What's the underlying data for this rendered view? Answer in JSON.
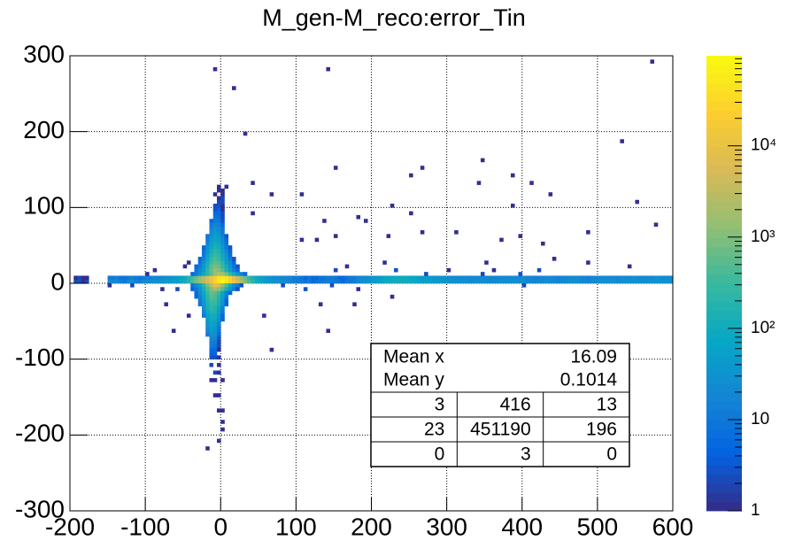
{
  "chart_data": {
    "type": "heatmap2d",
    "title": "M_gen-M_reco:error_Tin",
    "xlim": [
      -200,
      600
    ],
    "xticks": [
      -200,
      -100,
      0,
      100,
      200,
      300,
      400,
      500,
      600
    ],
    "ylim": [
      -300,
      300
    ],
    "yticks": [
      -300,
      -200,
      -100,
      0,
      100,
      200,
      300
    ],
    "zlim": [
      1,
      97000
    ],
    "zlog": true,
    "zticks": [
      1,
      10,
      {
        "value": 100,
        "label": "10²"
      },
      {
        "value": 1000,
        "label": "10³"
      },
      {
        "value": 10000,
        "label": "10⁴"
      }
    ],
    "grid": true,
    "xbin": 5,
    "ybin": 5,
    "colormap": [
      "#352a87",
      "#0363e1",
      "#1485d4",
      "#06a7c6",
      "#38b99e",
      "#92bf73",
      "#d9ba56",
      "#fcce2e",
      "#f9fb0e"
    ],
    "rows": [
      {
        "y": 0,
        "x0": -195,
        "counts": [
          2,
          3,
          1,
          2,
          null,
          null,
          null,
          null,
          null,
          20,
          18,
          22,
          15,
          12,
          20,
          25,
          18,
          15,
          20,
          22,
          25,
          30,
          28,
          35,
          40,
          45,
          50,
          60,
          80,
          120,
          200,
          400,
          800,
          1500,
          3000,
          6000,
          12000,
          25000,
          50000,
          80000,
          60000,
          30000,
          12000,
          5000,
          2000,
          900,
          400,
          200,
          120,
          80,
          60,
          45,
          35,
          30,
          25,
          22,
          20,
          18,
          15,
          12,
          10,
          8,
          10,
          6,
          8,
          12,
          10,
          15,
          12,
          10,
          8,
          6,
          10,
          12,
          15,
          20,
          25,
          30,
          35,
          40,
          50,
          60,
          80,
          90,
          100,
          110,
          120,
          110,
          100,
          90,
          80,
          70,
          60,
          55,
          50,
          45,
          40,
          40,
          38,
          35,
          30,
          30,
          28,
          25,
          25,
          22,
          25,
          28,
          30,
          25,
          22,
          20,
          22,
          25,
          28,
          30,
          30,
          28,
          25,
          25,
          22,
          20,
          18,
          20,
          22,
          25,
          22,
          20,
          18,
          20,
          22,
          25,
          28,
          25,
          22,
          20,
          18,
          20,
          22,
          25,
          28,
          30,
          28,
          25,
          22,
          25,
          28,
          30,
          32,
          30,
          28,
          25,
          28,
          30,
          32,
          35,
          30,
          28,
          30
        ]
      },
      {
        "y": 5,
        "x0": -195,
        "counts": [
          1,
          2,
          1,
          1,
          null,
          null,
          null,
          null,
          null,
          12,
          10,
          14,
          9,
          8,
          12,
          15,
          11,
          9,
          12,
          14,
          15,
          18,
          17,
          22,
          25,
          28,
          32,
          40,
          55,
          90,
          160,
          350,
          700,
          1400,
          2800,
          5500,
          10000,
          20000,
          40000,
          60000,
          45000,
          22000,
          9000,
          3500,
          1500,
          700,
          300,
          150,
          90,
          60,
          45,
          35,
          28,
          24,
          20,
          18,
          16,
          14,
          12,
          10,
          8,
          6,
          8,
          5,
          6,
          9,
          8,
          12,
          10,
          8,
          6,
          5,
          8,
          10,
          12,
          16,
          20,
          24,
          28,
          32,
          40,
          48,
          64,
          72,
          80,
          88,
          96,
          88,
          80,
          72,
          64,
          56,
          48,
          44,
          40,
          36,
          32,
          32,
          30,
          28,
          24,
          24,
          22,
          20,
          20,
          18,
          20,
          22,
          24,
          20,
          18,
          16,
          18,
          20,
          22,
          24,
          24,
          22,
          20,
          20,
          18,
          16,
          14,
          16,
          18,
          20,
          18,
          16,
          14,
          16,
          18,
          20,
          22,
          20,
          18,
          16,
          14,
          16,
          18,
          20,
          22,
          24,
          22,
          20,
          18,
          20,
          22,
          24,
          26,
          24,
          22,
          20,
          22,
          24,
          26,
          28,
          24,
          22,
          24
        ]
      },
      {
        "y": 10,
        "x0": -40,
        "counts": [
          5,
          10,
          30,
          80,
          200,
          600,
          1500,
          2500,
          2000,
          800,
          300,
          100,
          40,
          15,
          5
        ]
      },
      {
        "y": 15,
        "x0": -35,
        "counts": [
          8,
          20,
          60,
          200,
          700,
          1500,
          1200,
          500,
          150,
          50,
          15,
          5
        ]
      },
      {
        "y": 20,
        "x0": -35,
        "counts": [
          5,
          12,
          40,
          150,
          500,
          900,
          700,
          300,
          100,
          30,
          8,
          3
        ]
      },
      {
        "y": 25,
        "x0": -30,
        "counts": [
          8,
          25,
          100,
          350,
          600,
          450,
          200,
          60,
          20,
          5
        ]
      },
      {
        "y": 30,
        "x0": -30,
        "counts": [
          5,
          15,
          70,
          250,
          400,
          300,
          120,
          40,
          10,
          3
        ]
      },
      {
        "y": 35,
        "x0": -25,
        "counts": [
          10,
          50,
          180,
          280,
          200,
          80,
          25,
          6
        ]
      },
      {
        "y": 40,
        "x0": -25,
        "counts": [
          8,
          35,
          120,
          200,
          150,
          60,
          18,
          4
        ]
      },
      {
        "y": 45,
        "x0": -25,
        "counts": [
          5,
          25,
          90,
          150,
          110,
          40,
          12,
          3
        ]
      },
      {
        "y": 50,
        "x0": -20,
        "counts": [
          18,
          60,
          100,
          80,
          30,
          8
        ]
      },
      {
        "y": 55,
        "x0": -20,
        "counts": [
          12,
          45,
          70,
          55,
          20,
          5
        ]
      },
      {
        "y": 60,
        "x0": -20,
        "counts": [
          8,
          30,
          50,
          40,
          15,
          3
        ]
      },
      {
        "y": 65,
        "x0": -15,
        "counts": [
          20,
          35,
          30,
          10
        ]
      },
      {
        "y": 70,
        "x0": -15,
        "counts": [
          15,
          25,
          20,
          8
        ]
      },
      {
        "y": 75,
        "x0": -15,
        "counts": [
          10,
          18,
          14,
          5
        ]
      },
      {
        "y": 80,
        "x0": -15,
        "counts": [
          6,
          12,
          10,
          3
        ]
      },
      {
        "y": 85,
        "x0": -10,
        "counts": [
          8,
          7,
          2
        ]
      },
      {
        "y": 90,
        "x0": -10,
        "counts": [
          5,
          6,
          2
        ]
      },
      {
        "y": 95,
        "x0": -10,
        "counts": [
          3,
          4,
          1
        ]
      },
      {
        "y": 100,
        "x0": -10,
        "counts": [
          2,
          3,
          1
        ]
      },
      {
        "y": 105,
        "x0": -5,
        "counts": [
          2,
          2
        ]
      },
      {
        "y": 110,
        "x0": -5,
        "counts": [
          1,
          2
        ]
      },
      {
        "y": 115,
        "x0": -10,
        "counts": [
          1,
          null,
          1
        ]
      },
      {
        "y": 120,
        "x0": -5,
        "counts": [
          1,
          1
        ]
      },
      {
        "y": 125,
        "x0": -5,
        "counts": [
          1,
          null,
          1
        ]
      },
      {
        "y": -5,
        "x0": -40,
        "counts": [
          8,
          20,
          60,
          200,
          800,
          3000,
          8000,
          6000,
          1500,
          400,
          100,
          30,
          10,
          3
        ]
      },
      {
        "y": -10,
        "x0": -40,
        "counts": [
          4,
          10,
          30,
          100,
          400,
          1200,
          2000,
          1500,
          600,
          150,
          40,
          10,
          3
        ]
      },
      {
        "y": -15,
        "x0": -35,
        "counts": [
          6,
          20,
          80,
          300,
          700,
          600,
          250,
          70,
          15,
          4
        ]
      },
      {
        "y": -20,
        "x0": -35,
        "counts": [
          4,
          15,
          60,
          220,
          500,
          450,
          180,
          50,
          10
        ]
      },
      {
        "y": -25,
        "x0": -30,
        "counts": [
          10,
          45,
          170,
          380,
          330,
          130,
          35,
          6
        ]
      },
      {
        "y": -30,
        "x0": -30,
        "counts": [
          8,
          35,
          130,
          280,
          250,
          100,
          25,
          4
        ]
      },
      {
        "y": -35,
        "x0": -25,
        "counts": [
          25,
          100,
          200,
          180,
          70,
          15
        ]
      },
      {
        "y": -40,
        "x0": -25,
        "counts": [
          18,
          80,
          160,
          140,
          50,
          10
        ]
      },
      {
        "y": -45,
        "x0": -25,
        "counts": [
          12,
          60,
          120,
          100,
          35,
          6
        ]
      },
      {
        "y": -50,
        "x0": -20,
        "counts": [
          45,
          90,
          80,
          25,
          4
        ]
      },
      {
        "y": -55,
        "x0": -20,
        "counts": [
          35,
          70,
          60,
          18
        ]
      },
      {
        "y": -60,
        "x0": -20,
        "counts": [
          25,
          50,
          45,
          12
        ]
      },
      {
        "y": -65,
        "x0": -20,
        "counts": [
          18,
          40,
          35,
          8
        ]
      },
      {
        "y": -70,
        "x0": -20,
        "counts": [
          12,
          30,
          25,
          5
        ]
      },
      {
        "y": -75,
        "x0": -15,
        "counts": [
          20,
          18,
          3
        ]
      },
      {
        "y": -80,
        "x0": -15,
        "counts": [
          15,
          12,
          2
        ]
      },
      {
        "y": -85,
        "x0": -15,
        "counts": [
          10,
          8,
          2
        ]
      },
      {
        "y": -90,
        "x0": -15,
        "counts": [
          6,
          5,
          1
        ]
      },
      {
        "y": -95,
        "x0": -15,
        "counts": [
          4,
          4
        ]
      },
      {
        "y": -100,
        "x0": -15,
        "counts": [
          3,
          3,
          1
        ]
      },
      {
        "y": -110,
        "x0": -15,
        "counts": [
          2,
          null,
          1
        ]
      },
      {
        "y": -120,
        "x0": -10,
        "counts": [
          2,
          1
        ]
      },
      {
        "y": -130,
        "x0": -15,
        "counts": [
          1,
          1,
          null,
          1
        ]
      },
      {
        "y": -150,
        "x0": -10,
        "counts": [
          1,
          1
        ]
      },
      {
        "y": -170,
        "x0": -5,
        "counts": [
          1,
          1
        ]
      },
      {
        "y": -185,
        "x0": 0,
        "counts": [
          1
        ]
      },
      {
        "y": -195,
        "x0": 0,
        "counts": [
          1
        ]
      }
    ],
    "cells": [
      [
        -10,
        280,
        1
      ],
      [
        140,
        280,
        1
      ],
      [
        15,
        255,
        1
      ],
      [
        570,
        290,
        1
      ],
      [
        30,
        195,
        1
      ],
      [
        530,
        185,
        1
      ],
      [
        345,
        160,
        1
      ],
      [
        150,
        150,
        1
      ],
      [
        265,
        150,
        1
      ],
      [
        250,
        140,
        1
      ],
      [
        385,
        140,
        1
      ],
      [
        550,
        105,
        1
      ],
      [
        385,
        100,
        1
      ],
      [
        225,
        100,
        1
      ],
      [
        250,
        90,
        1
      ],
      [
        40,
        90,
        1
      ],
      [
        180,
        85,
        1
      ],
      [
        190,
        80,
        1
      ],
      [
        135,
        80,
        1
      ],
      [
        410,
        130,
        1
      ],
      [
        435,
        115,
        1
      ],
      [
        340,
        130,
        1
      ],
      [
        105,
        115,
        1
      ],
      [
        65,
        115,
        1
      ],
      [
        40,
        130,
        1
      ],
      [
        150,
        60,
        1
      ],
      [
        105,
        55,
        1
      ],
      [
        125,
        55,
        1
      ],
      [
        395,
        60,
        1
      ],
      [
        370,
        55,
        1
      ],
      [
        310,
        65,
        1
      ],
      [
        265,
        65,
        1
      ],
      [
        220,
        60,
        1
      ],
      [
        350,
        25,
        1
      ],
      [
        485,
        25,
        1
      ],
      [
        540,
        20,
        1
      ],
      [
        440,
        30,
        1
      ],
      [
        425,
        50,
        1
      ],
      [
        485,
        65,
        1
      ],
      [
        575,
        75,
        1
      ],
      [
        -75,
        -30,
        1
      ],
      [
        -65,
        -65,
        1
      ],
      [
        65,
        -90,
        1
      ],
      [
        140,
        -65,
        1
      ],
      [
        55,
        -45,
        1
      ],
      [
        -20,
        -220,
        1
      ],
      [
        -5,
        -210,
        1
      ],
      [
        130,
        -30,
        1
      ],
      [
        225,
        -20,
        1
      ],
      [
        175,
        -30,
        1
      ],
      [
        -45,
        -45,
        1
      ],
      [
        150,
        15,
        2
      ],
      [
        165,
        20,
        1
      ],
      [
        230,
        15,
        3
      ],
      [
        270,
        10,
        2
      ],
      [
        300,
        15,
        1
      ],
      [
        345,
        10,
        2
      ],
      [
        360,
        15,
        1
      ],
      [
        395,
        10,
        3
      ],
      [
        420,
        15,
        2
      ],
      [
        215,
        25,
        1
      ],
      [
        -100,
        10,
        1
      ],
      [
        -90,
        15,
        1
      ],
      [
        -50,
        20,
        1
      ],
      [
        -45,
        25,
        1
      ],
      [
        -60,
        -10,
        2
      ],
      [
        -120,
        -5,
        2
      ],
      [
        -80,
        -10,
        1
      ],
      [
        -150,
        -5,
        1
      ],
      [
        80,
        -5,
        2
      ],
      [
        110,
        -10,
        3
      ],
      [
        145,
        -5,
        2
      ],
      [
        180,
        -10,
        1
      ],
      [
        400,
        -5,
        2
      ]
    ],
    "stats": {
      "entries": [
        {
          "name": "Mean x",
          "value": 16.09
        },
        {
          "name": "Mean y",
          "value": 0.1014
        }
      ],
      "overflow": [
        [
          3,
          416,
          13
        ],
        [
          23,
          451190,
          196
        ],
        [
          0,
          3,
          0
        ]
      ]
    }
  }
}
